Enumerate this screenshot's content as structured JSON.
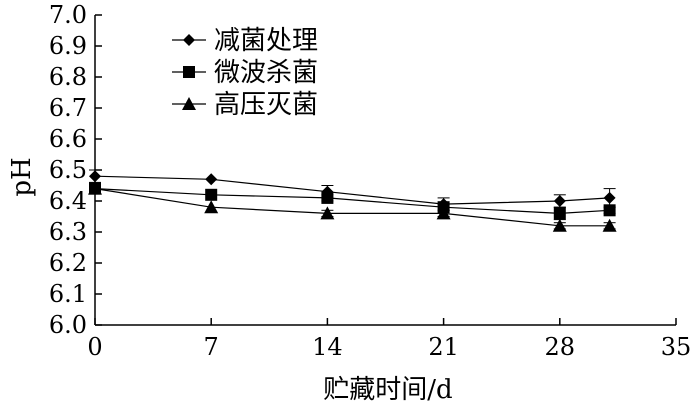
{
  "chart_data": {
    "type": "line",
    "title": "",
    "xlabel": "贮藏时间/d",
    "ylabel": "pH",
    "xlim": [
      0,
      35
    ],
    "ylim": [
      6.0,
      7.0
    ],
    "x_ticks": [
      "0",
      "7",
      "14",
      "21",
      "28",
      "35"
    ],
    "y_ticks": [
      "6.0",
      "6.1",
      "6.2",
      "6.3",
      "6.4",
      "6.5",
      "6.6",
      "6.7",
      "6.8",
      "6.9",
      "7.0"
    ],
    "x": [
      0,
      7,
      14,
      21,
      28,
      31
    ],
    "series": [
      {
        "name": "减菌处理",
        "marker": "diamond",
        "values": [
          6.48,
          6.47,
          6.43,
          6.39,
          6.4,
          6.41
        ],
        "errors": [
          0.02,
          0.0,
          0.02,
          0.02,
          0.02,
          0.03
        ]
      },
      {
        "name": "微波杀菌",
        "marker": "square",
        "values": [
          6.44,
          6.42,
          6.41,
          6.38,
          6.36,
          6.37
        ],
        "errors": [
          0.01,
          0.0,
          0.01,
          0.01,
          0.02,
          0.01
        ]
      },
      {
        "name": "高压灭菌",
        "marker": "triangle",
        "values": [
          6.44,
          6.38,
          6.36,
          6.36,
          6.32,
          6.32
        ],
        "errors": [
          0.01,
          0.0,
          0.01,
          0.01,
          0.01,
          0.01
        ]
      }
    ],
    "legend_position": "top-left",
    "grid": false,
    "colors": {
      "series": "#000000",
      "axis": "#000000"
    }
  }
}
